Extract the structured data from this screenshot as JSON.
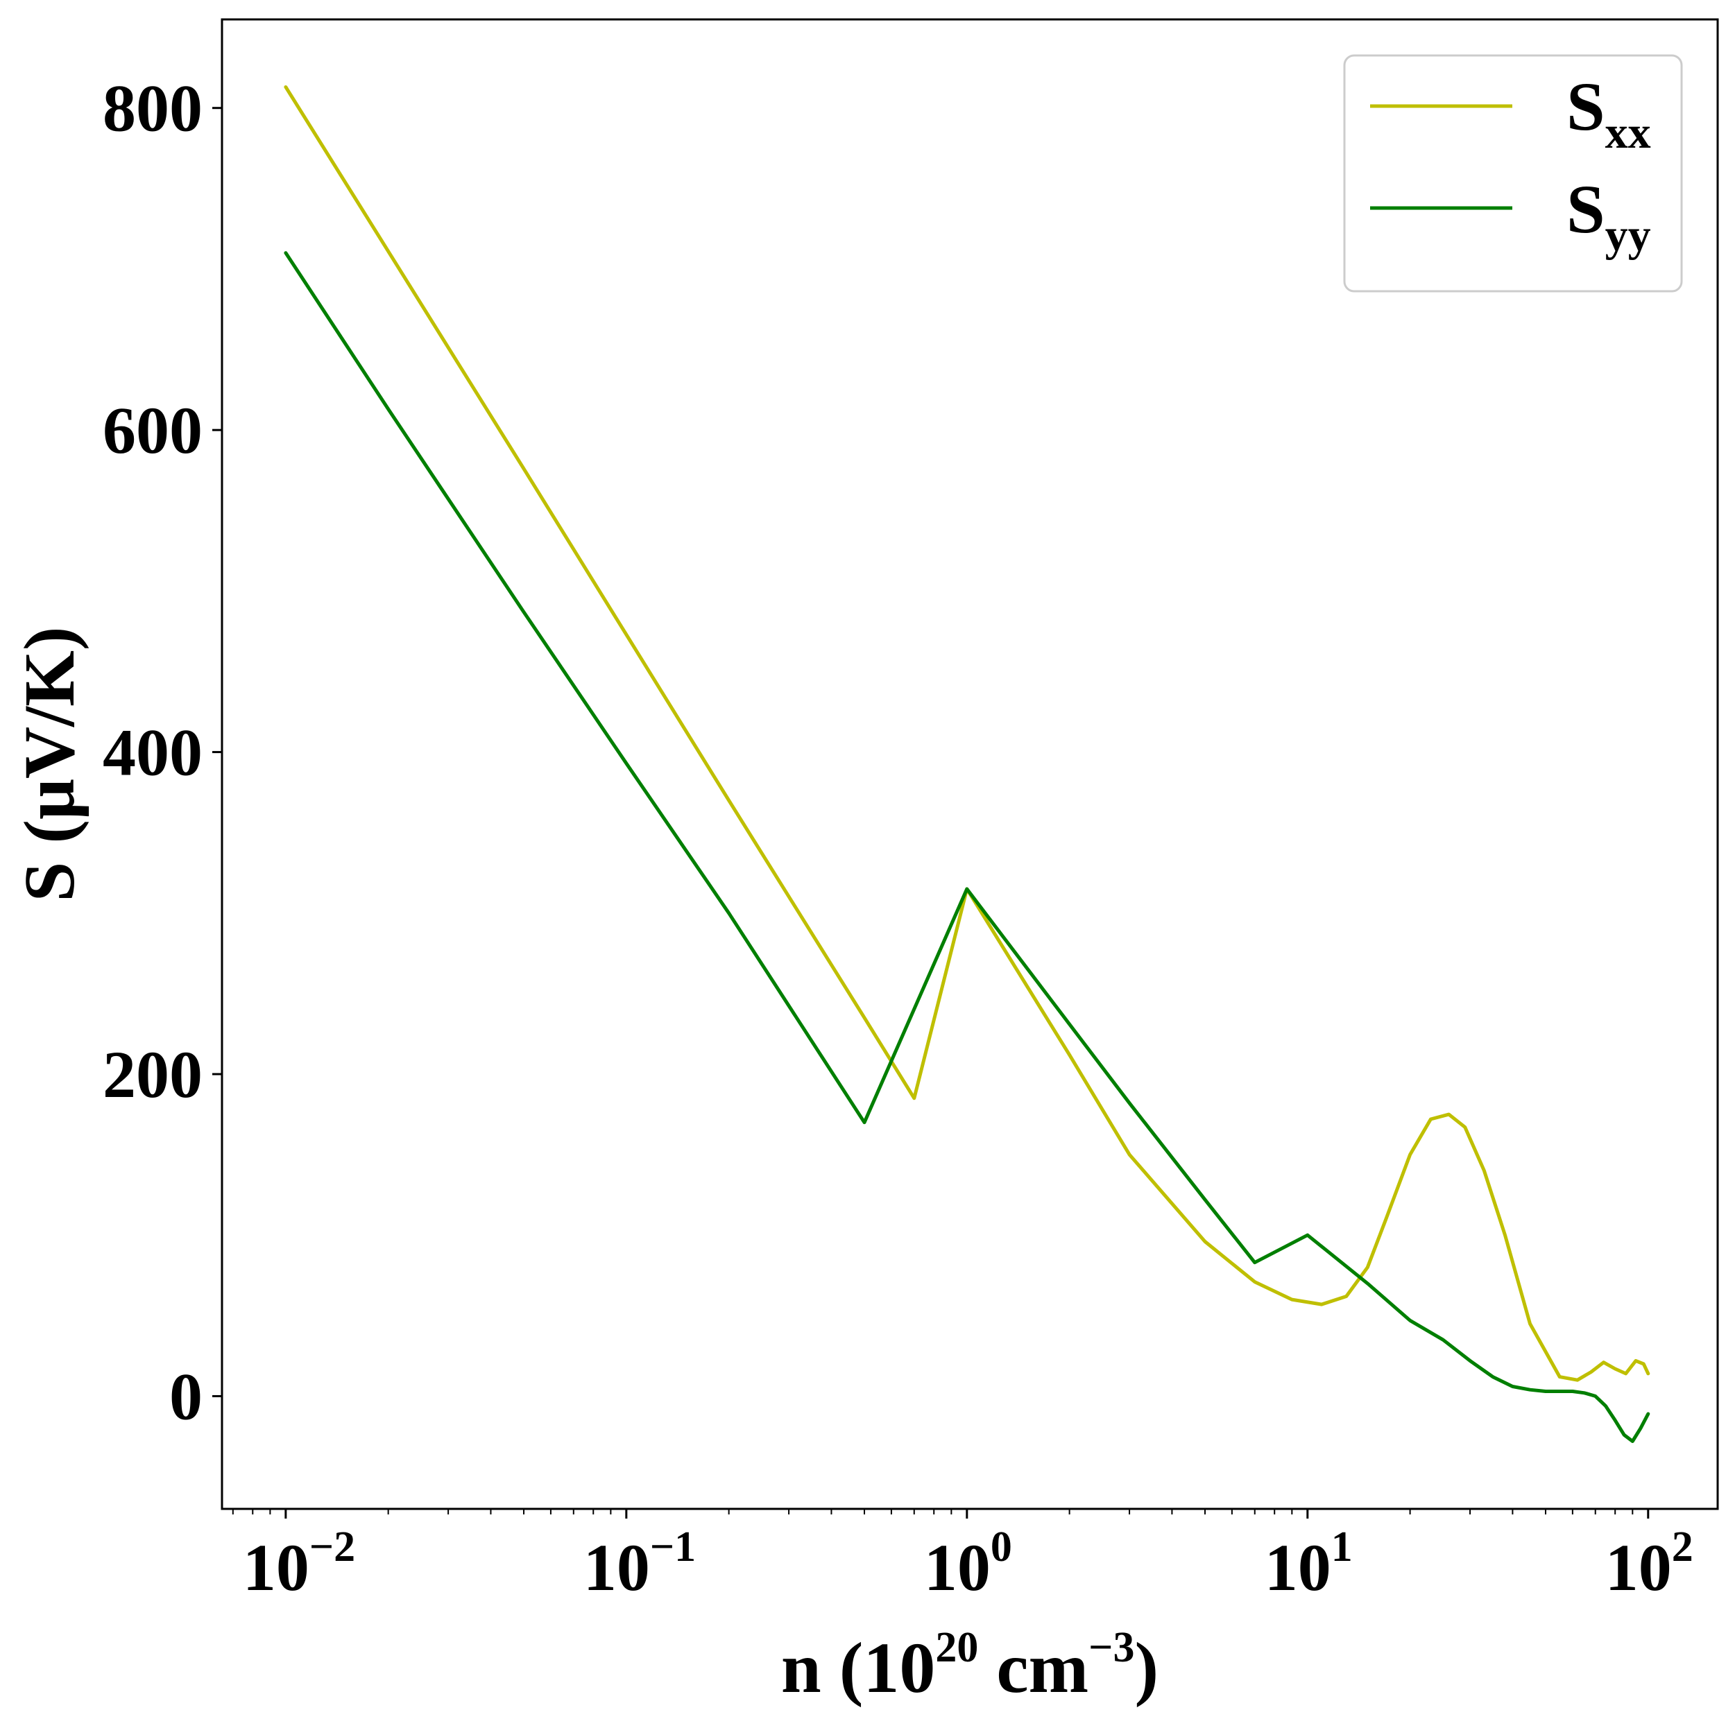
{
  "chart_data": {
    "type": "line",
    "xscale": "log",
    "xlim": [
      0.0065,
      160
    ],
    "ylim": [
      -70,
      855
    ],
    "grid": false,
    "legend_position": "top-right",
    "xlabel": {
      "main": "n (10",
      "sup1": "20",
      "mid": " cm",
      "sup2": "−3",
      "end": ")"
    },
    "ylabel": "S (μV/K)",
    "yticks": [
      0,
      200,
      400,
      600,
      800
    ],
    "ytick_labels": [
      "0",
      "200",
      "400",
      "600",
      "800"
    ],
    "xticks": [
      0.01,
      0.1,
      1,
      10,
      100
    ],
    "xtick_labels": [
      {
        "base": "10",
        "exp": "−2"
      },
      {
        "base": "10",
        "exp": "−1"
      },
      {
        "base": "10",
        "exp": "0"
      },
      {
        "base": "10",
        "exp": "1"
      },
      {
        "base": "10",
        "exp": "2"
      }
    ],
    "series": [
      {
        "name": "S",
        "name_sub": "xx",
        "color": "#bfbf00",
        "x": [
          0.01,
          0.02,
          0.05,
          0.1,
          0.2,
          0.5,
          0.7,
          1.0,
          2,
          3,
          5,
          7,
          9,
          11,
          13,
          15,
          17,
          20,
          23,
          26,
          29,
          33,
          38,
          45,
          55,
          62,
          68,
          74,
          80,
          86,
          92,
          97,
          100
        ],
        "y": [
          813,
          711,
          576,
          473,
          370,
          235,
          185,
          315,
          212,
          150,
          96,
          71,
          60,
          57,
          62,
          80,
          110,
          150,
          172,
          175,
          167,
          140,
          100,
          45,
          12,
          10,
          15,
          21,
          17,
          14,
          22,
          20,
          14
        ]
      },
      {
        "name": "S",
        "name_sub": "yy",
        "color": "#007f00",
        "x": [
          0.01,
          0.02,
          0.05,
          0.1,
          0.2,
          0.5,
          1.0,
          2,
          3,
          5,
          7,
          10,
          15,
          20,
          25,
          30,
          35,
          40,
          45,
          50,
          60,
          65,
          70,
          75,
          80,
          85,
          90,
          95,
          100
        ],
        "y": [
          710,
          613,
          487,
          393,
          300,
          170,
          315,
          231,
          182,
          122,
          83,
          100,
          70,
          47,
          35,
          22,
          12,
          6,
          4,
          3,
          3,
          2,
          0,
          -6,
          -15,
          -24,
          -28,
          -20,
          -11
        ]
      }
    ]
  }
}
